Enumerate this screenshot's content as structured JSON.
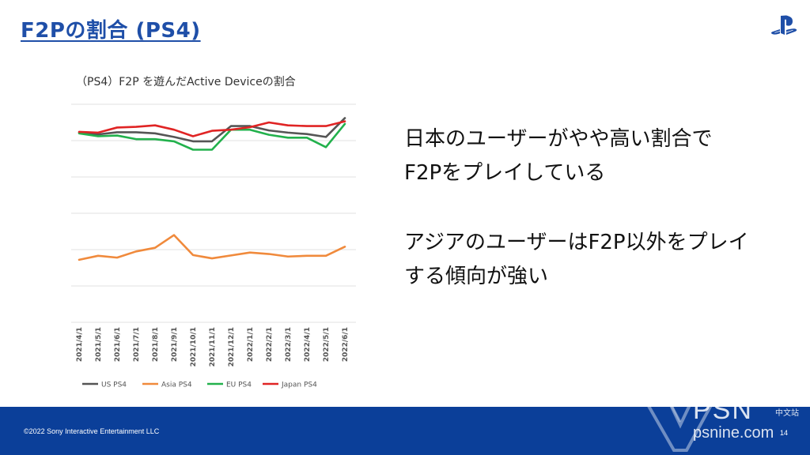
{
  "slide": {
    "title": "F2Pの割合 (PS4)",
    "message1_line1": "日本のユーザーがやや高い割合で",
    "message1_line2": "F2Pをプレイしている",
    "message2_line1": "アジアのユーザーはF2P以外をプレイ",
    "message2_line2": "する傾向が強い"
  },
  "footer": {
    "copyright": "©2022 Sony Interactive Entertainment LLC",
    "page_number": "14",
    "color": "#0b3f99"
  },
  "watermark": {
    "brand": "PSN",
    "sub": "中文站",
    "url": "psnine.com"
  },
  "chart_data": {
    "type": "line",
    "title": "（PS4）F2P を遊んだActive Deviceの割合",
    "categories": [
      "2021/4/1",
      "2021/5/1",
      "2021/6/1",
      "2021/7/1",
      "2021/8/1",
      "2021/9/1",
      "2021/10/1",
      "2021/11/1",
      "2021/12/1",
      "2022/1/1",
      "2022/2/1",
      "2022/3/1",
      "2022/4/1",
      "2022/5/1",
      "2022/6/1"
    ],
    "ylim": [
      0,
      6
    ],
    "gridlines": true,
    "legend_position": "bottom",
    "series": [
      {
        "name": "US PS4",
        "color": "#555555",
        "values": [
          5.22,
          5.17,
          5.23,
          5.23,
          5.2,
          5.1,
          4.98,
          4.98,
          5.4,
          5.4,
          5.28,
          5.22,
          5.18,
          5.1,
          5.62
        ]
      },
      {
        "name": "Asia PS4",
        "color": "#f08a3c",
        "values": [
          1.72,
          1.83,
          1.78,
          1.95,
          2.05,
          2.4,
          1.85,
          1.76,
          1.84,
          1.92,
          1.88,
          1.81,
          1.83,
          1.83,
          2.08
        ]
      },
      {
        "name": "EU PS4",
        "color": "#22b14c",
        "values": [
          5.2,
          5.12,
          5.14,
          5.04,
          5.04,
          4.98,
          4.75,
          4.75,
          5.3,
          5.3,
          5.16,
          5.08,
          5.08,
          4.82,
          5.46
        ]
      },
      {
        "name": "Japan PS4",
        "color": "#e02424",
        "values": [
          5.24,
          5.22,
          5.36,
          5.38,
          5.42,
          5.3,
          5.12,
          5.27,
          5.3,
          5.37,
          5.5,
          5.42,
          5.4,
          5.4,
          5.53
        ]
      }
    ]
  }
}
